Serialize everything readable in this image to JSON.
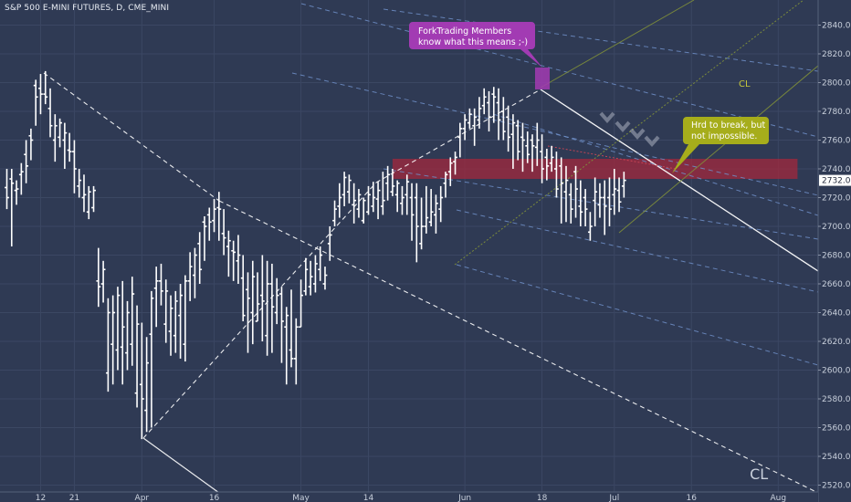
{
  "symbol_title": "S&P 500 E-MINI FUTURES, D, CME_MINI",
  "colors": {
    "background": "#2f3a54",
    "bar": "#ffffff",
    "grid": "#3b4763",
    "resistance_zone": "#a3283c",
    "pitchfork_median": "#7f8f3a",
    "magenta_callout": "#a23bb3",
    "olive_callout": "#a6ad1b",
    "price_badge": "#ffffff"
  },
  "chart_data": {
    "type": "ohlc",
    "title": "S&P 500 E-MINI FUTURES, D, CME_MINI",
    "timeframe": "D",
    "price_axis": {
      "ylim": [
        2518,
        2854
      ],
      "ticks": [
        2520,
        2540,
        2560,
        2580,
        2600,
        2620,
        2640,
        2660,
        2680,
        2700,
        2720,
        2740,
        2760,
        2780,
        2800,
        2820,
        2840
      ],
      "tick_labels": [
        "2520.00",
        "2540.00",
        "2560.00",
        "2580.00",
        "2600.00",
        "2620.00",
        "2640.00",
        "2660.00",
        "2680.00",
        "2700.00",
        "2720.00",
        "2740.00",
        "2760.00",
        "2780.00",
        "2800.00",
        "2820.00",
        "2840.00"
      ],
      "last_price": 2732,
      "last_price_label": "2732.00"
    },
    "time_axis": {
      "ticks": [
        {
          "label": "12",
          "bar": 7
        },
        {
          "label": "21",
          "bar": 14
        },
        {
          "label": "Apr",
          "bar": 28
        },
        {
          "label": "16",
          "bar": 43
        },
        {
          "label": "May",
          "bar": 61
        },
        {
          "label": "14",
          "bar": 75
        },
        {
          "label": "Jun",
          "bar": 95
        },
        {
          "label": "18",
          "bar": 111
        },
        {
          "label": "Jul",
          "bar": 126
        },
        {
          "label": "16",
          "bar": 142
        },
        {
          "label": "Aug",
          "bar": 160
        }
      ]
    },
    "grid": true,
    "bars": [
      [
        2727,
        2740,
        2712,
        2720
      ],
      [
        2733,
        2740,
        2686,
        2730
      ],
      [
        2725,
        2732,
        2715,
        2726
      ],
      [
        2736,
        2744,
        2722,
        2738
      ],
      [
        2750,
        2760,
        2730,
        2742
      ],
      [
        2763,
        2768,
        2746,
        2760
      ],
      [
        2798,
        2802,
        2770,
        2790
      ],
      [
        2796,
        2806,
        2778,
        2792
      ],
      [
        2792,
        2808,
        2785,
        2790
      ],
      [
        2782,
        2796,
        2762,
        2770
      ],
      [
        2760,
        2778,
        2745,
        2770
      ],
      [
        2762,
        2775,
        2755,
        2772
      ],
      [
        2760,
        2772,
        2740,
        2765
      ],
      [
        2753,
        2765,
        2745,
        2752
      ],
      [
        2752,
        2760,
        2723,
        2740
      ],
      [
        2728,
        2740,
        2720,
        2732
      ],
      [
        2720,
        2736,
        2710,
        2722
      ],
      [
        2710,
        2728,
        2705,
        2724
      ],
      [
        2713,
        2728,
        2710,
        2725
      ],
      [
        2662,
        2685,
        2644,
        2658
      ],
      [
        2660,
        2676,
        2647,
        2670
      ],
      [
        2598,
        2650,
        2585,
        2640
      ],
      [
        2618,
        2652,
        2590,
        2640
      ],
      [
        2614,
        2658,
        2600,
        2652
      ],
      [
        2616,
        2662,
        2590,
        2630
      ],
      [
        2612,
        2648,
        2600,
        2640
      ],
      [
        2618,
        2665,
        2603,
        2653
      ],
      [
        2584,
        2645,
        2574,
        2632
      ],
      [
        2590,
        2633,
        2552,
        2580
      ],
      [
        2572,
        2623,
        2557,
        2605
      ],
      [
        2625,
        2655,
        2560,
        2650
      ],
      [
        2657,
        2672,
        2630,
        2662
      ],
      [
        2662,
        2674,
        2645,
        2655
      ],
      [
        2632,
        2663,
        2619,
        2655
      ],
      [
        2627,
        2652,
        2610,
        2643
      ],
      [
        2624,
        2655,
        2612,
        2648
      ],
      [
        2638,
        2660,
        2608,
        2652
      ],
      [
        2618,
        2666,
        2606,
        2662
      ],
      [
        2662,
        2682,
        2648,
        2672
      ],
      [
        2666,
        2685,
        2650,
        2680
      ],
      [
        2688,
        2696,
        2660,
        2670
      ],
      [
        2703,
        2707,
        2676,
        2700
      ],
      [
        2708,
        2713,
        2690,
        2703
      ],
      [
        2704,
        2719,
        2696,
        2712
      ],
      [
        2713,
        2724,
        2690,
        2712
      ],
      [
        2695,
        2712,
        2680,
        2692
      ],
      [
        2686,
        2697,
        2665,
        2690
      ],
      [
        2683,
        2690,
        2662,
        2682
      ],
      [
        2676,
        2694,
        2660,
        2680
      ],
      [
        2664,
        2680,
        2634,
        2638
      ],
      [
        2656,
        2668,
        2612,
        2650
      ],
      [
        2640,
        2676,
        2618,
        2665
      ],
      [
        2634,
        2668,
        2634,
        2646
      ],
      [
        2652,
        2680,
        2620,
        2648
      ],
      [
        2624,
        2676,
        2610,
        2660
      ],
      [
        2660,
        2674,
        2612,
        2644
      ],
      [
        2640,
        2664,
        2632,
        2652
      ],
      [
        2653,
        2658,
        2605,
        2634
      ],
      [
        2630,
        2644,
        2590,
        2638
      ],
      [
        2614,
        2656,
        2602,
        2608
      ],
      [
        2608,
        2636,
        2590,
        2630
      ],
      [
        2630,
        2663,
        2630,
        2652
      ],
      [
        2655,
        2678,
        2652,
        2670
      ],
      [
        2658,
        2676,
        2652,
        2665
      ],
      [
        2660,
        2680,
        2654,
        2674
      ],
      [
        2670,
        2686,
        2662,
        2680
      ],
      [
        2660,
        2672,
        2656,
        2666
      ],
      [
        2688,
        2700,
        2676,
        2694
      ],
      [
        2704,
        2718,
        2700,
        2712
      ],
      [
        2714,
        2730,
        2706,
        2720
      ],
      [
        2722,
        2738,
        2714,
        2734
      ],
      [
        2724,
        2736,
        2716,
        2732
      ],
      [
        2715,
        2730,
        2702,
        2718
      ],
      [
        2712,
        2726,
        2706,
        2722
      ],
      [
        2704,
        2720,
        2702,
        2718
      ],
      [
        2710,
        2728,
        2708,
        2722
      ],
      [
        2714,
        2731,
        2710,
        2720
      ],
      [
        2719,
        2731,
        2705,
        2725
      ],
      [
        2714,
        2738,
        2708,
        2718
      ],
      [
        2730,
        2742,
        2718,
        2736
      ],
      [
        2724,
        2740,
        2721,
        2728
      ],
      [
        2722,
        2732,
        2710,
        2730
      ],
      [
        2716,
        2728,
        2708,
        2720
      ],
      [
        2722,
        2736,
        2708,
        2731
      ],
      [
        2720,
        2730,
        2690,
        2708
      ],
      [
        2720,
        2730,
        2675,
        2700
      ],
      [
        2688,
        2720,
        2684,
        2700
      ],
      [
        2700,
        2728,
        2695,
        2706
      ],
      [
        2703,
        2726,
        2700,
        2710
      ],
      [
        2708,
        2722,
        2695,
        2716
      ],
      [
        2712,
        2728,
        2703,
        2720
      ],
      [
        2730,
        2738,
        2720,
        2736
      ],
      [
        2738,
        2748,
        2728,
        2744
      ],
      [
        2745,
        2752,
        2736,
        2748
      ],
      [
        2762,
        2772,
        2748,
        2768
      ],
      [
        2768,
        2778,
        2760,
        2774
      ],
      [
        2772,
        2782,
        2768,
        2778
      ],
      [
        2770,
        2782,
        2756,
        2776
      ],
      [
        2774,
        2790,
        2768,
        2782
      ],
      [
        2784,
        2796,
        2778,
        2790
      ],
      [
        2786,
        2794,
        2766,
        2776
      ],
      [
        2792,
        2797,
        2772,
        2790
      ],
      [
        2786,
        2796,
        2760,
        2774
      ],
      [
        2780,
        2790,
        2760,
        2766
      ],
      [
        2776,
        2784,
        2752,
        2762
      ],
      [
        2764,
        2778,
        2740,
        2772
      ],
      [
        2770,
        2774,
        2746,
        2752
      ],
      [
        2762,
        2772,
        2738,
        2760
      ],
      [
        2756,
        2766,
        2744,
        2750
      ],
      [
        2760,
        2764,
        2738,
        2756
      ],
      [
        2755,
        2772,
        2742,
        2760
      ],
      [
        2752,
        2764,
        2730,
        2740
      ],
      [
        2748,
        2754,
        2732,
        2742
      ],
      [
        2744,
        2756,
        2738,
        2748
      ],
      [
        2740,
        2752,
        2720,
        2726
      ],
      [
        2742,
        2748,
        2702,
        2730
      ],
      [
        2724,
        2742,
        2703,
        2732
      ],
      [
        2722,
        2730,
        2702,
        2712
      ],
      [
        2738,
        2742,
        2706,
        2726
      ],
      [
        2714,
        2732,
        2700,
        2710
      ],
      [
        2720,
        2726,
        2700,
        2712
      ],
      [
        2696,
        2710,
        2690,
        2700
      ],
      [
        2718,
        2734,
        2700,
        2724
      ],
      [
        2715,
        2730,
        2706,
        2720
      ],
      [
        2720,
        2732,
        2694,
        2714
      ],
      [
        2720,
        2734,
        2700,
        2712
      ],
      [
        2722,
        2740,
        2708,
        2726
      ],
      [
        2725,
        2734,
        2710,
        2717
      ],
      [
        2728,
        2738,
        2720,
        2732
      ]
    ],
    "resistance_zone": {
      "from_bar": 80,
      "to_bar": 164,
      "top": 2747,
      "bottom": 2733
    },
    "annotations": [
      {
        "kind": "text",
        "text": "CL",
        "bar": 153,
        "price": 2797
      },
      {
        "kind": "text",
        "text": "CL",
        "bar": 156,
        "price": 2524
      }
    ]
  },
  "callouts": {
    "fork_members": {
      "line1": "ForkTrading Members",
      "line2": "know what this means ;-)"
    },
    "hrd_to_break": {
      "line1": "Hrd to break, but",
      "line2": "not impossible."
    }
  }
}
